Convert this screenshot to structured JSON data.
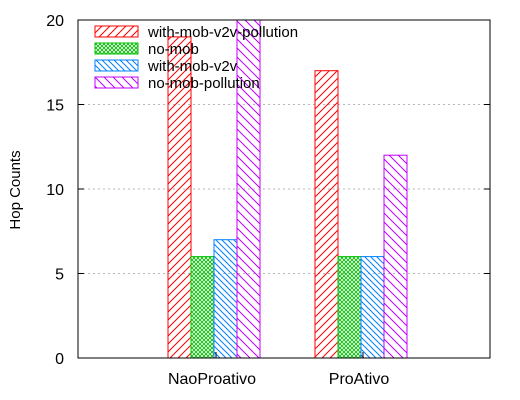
{
  "chart_data": {
    "type": "bar",
    "title": "",
    "xlabel": "",
    "ylabel": "Hop Counts",
    "ylim": [
      0,
      20
    ],
    "yticks": [
      0,
      5,
      10,
      15,
      20
    ],
    "categories": [
      "NaoProativo",
      "ProAtivo"
    ],
    "grid": true,
    "legend_position": "top-left",
    "series": [
      {
        "name": "with-mob-v2v-pollution",
        "values": [
          19,
          17
        ],
        "color": "#ff0000",
        "pattern": "diagonal-up"
      },
      {
        "name": "no-mob",
        "values": [
          6,
          6
        ],
        "color": "#00c000",
        "pattern": "crosshatch"
      },
      {
        "name": "with-mob-v2v",
        "values": [
          7,
          6
        ],
        "color": "#0080ff",
        "pattern": "diagonal-down"
      },
      {
        "name": "no-mob-pollution",
        "values": [
          20,
          12
        ],
        "color": "#c000ff",
        "pattern": "diagonal-down-wide"
      }
    ]
  }
}
